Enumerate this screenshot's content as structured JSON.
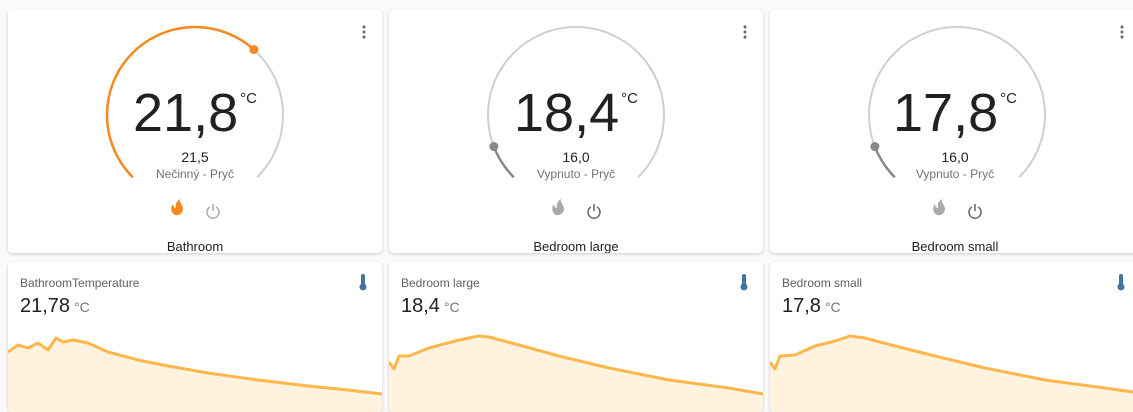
{
  "thermostats": [
    {
      "temperature": "21,8",
      "unit": "°C",
      "target": "21,5",
      "state": "Nečinný - Pryč",
      "name": "Bathroom"
    },
    {
      "temperature": "18,4",
      "unit": "°C",
      "target": "16,0",
      "state": "Vypnuto - Pryč",
      "name": "Bedroom large"
    },
    {
      "temperature": "17,8",
      "unit": "°C",
      "target": "16,0",
      "state": "Vypnuto - Pryč",
      "name": "Bedroom small"
    }
  ],
  "sensors": [
    {
      "name": "BathroomTemperature",
      "value": "21,78",
      "unit": "°C"
    },
    {
      "name": "Bedroom large",
      "value": "18,4",
      "unit": "°C"
    },
    {
      "name": "Bedroom small",
      "value": "17,8",
      "unit": "°C"
    }
  ]
}
